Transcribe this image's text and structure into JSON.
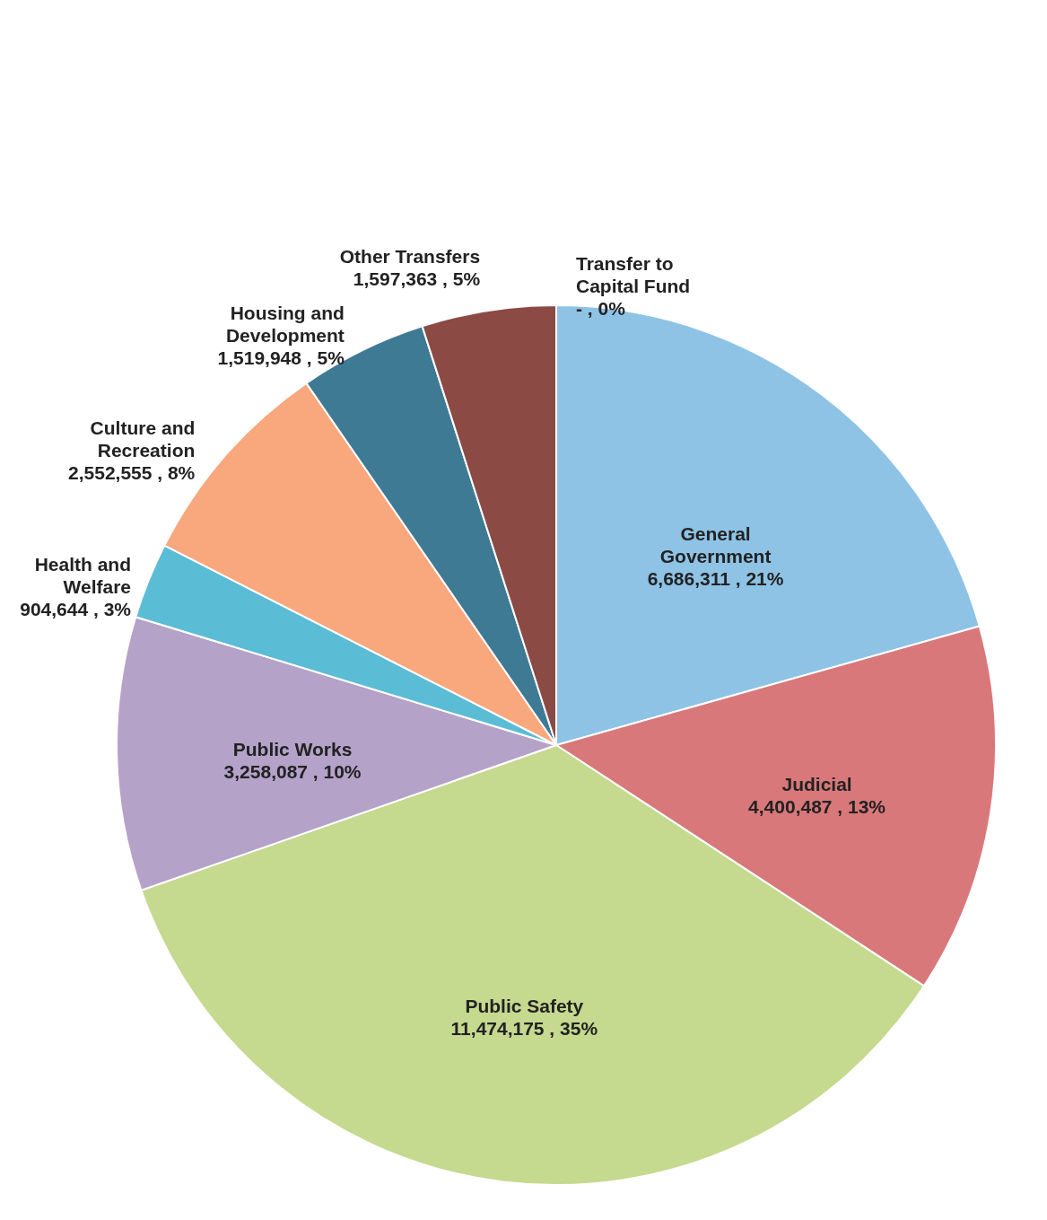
{
  "chart_data": {
    "type": "pie",
    "categories": [
      "General Government",
      "Judicial",
      "Public Safety",
      "Public Works",
      "Health and Welfare",
      "Culture and Recreation",
      "Housing and Development",
      "Other Transfers",
      "Transfer to Capital Fund"
    ],
    "values": [
      6686311,
      4400487,
      11474175,
      3258087,
      904644,
      2552555,
      1519948,
      1597363,
      0
    ],
    "colors": [
      "#8ec3e6",
      "#d9787a",
      "#c5d98f",
      "#b4a2c9",
      "#5bbcd6",
      "#f9a77c",
      "#3f7a94",
      "#8c4a44",
      "#5f8fbf"
    ],
    "value_labels": [
      "6,686,311 , 21%",
      "4,400,487 , 13%",
      "11,474,175 , 35%",
      "3,258,087 , 10%",
      "904,644 , 3%",
      "2,552,555 , 8%",
      "1,519,948 , 5%",
      "1,597,363 , 5%",
      "- , 0%"
    ]
  }
}
